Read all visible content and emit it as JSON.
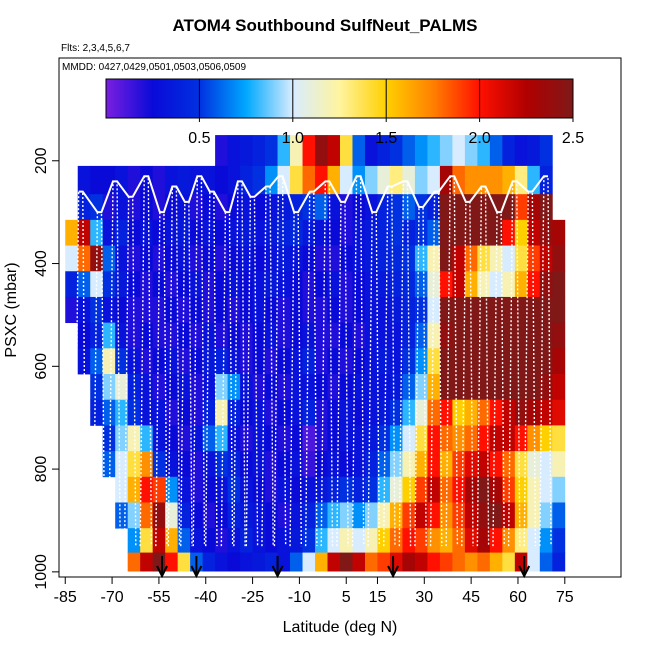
{
  "chart_data": {
    "type": "heatmap",
    "title": "ATOM4 Southbound SulfNeut_PALMS",
    "flights_note": "Flts: 2,3,4,5,6,7",
    "dates_note": "MMDD: 0427,0429,0501,0503,0506,0509",
    "xlabel": "Latitude (deg N)",
    "ylabel": "PSXC (mbar)",
    "xlim": [
      -87,
      93
    ],
    "ylim": [
      1010,
      0
    ],
    "x_ticks": [
      -85,
      -70,
      -55,
      -40,
      -25,
      -10,
      5,
      15,
      30,
      45,
      60,
      75
    ],
    "y_ticks": [
      200,
      400,
      600,
      800,
      1000
    ],
    "colorbar": {
      "range": [
        0,
        2.5
      ],
      "ticks": [
        0.5,
        1.0,
        1.5,
        2.0,
        2.5
      ],
      "tick_labels": [
        "0.5",
        "1.0",
        "1.5",
        "2.0",
        "2.5"
      ],
      "colors": [
        "#7a1fe0",
        "#0a0ad8",
        "#0030e0",
        "#00a8ff",
        "#d8ecff",
        "#fff4a0",
        "#ffd000",
        "#ff8000",
        "#ff1000",
        "#b00000",
        "#801818"
      ]
    },
    "pressure_levels": [
      180,
      240,
      290,
      340,
      390,
      440,
      490,
      540,
      590,
      640,
      690,
      740,
      790,
      840,
      890,
      940,
      985
    ],
    "latitude_start": -83,
    "latitude_step": 4,
    "grid_values": [
      [
        null,
        null,
        null,
        null,
        null,
        null,
        null,
        null,
        null,
        null,
        null,
        null,
        0.2,
        0.3,
        0.35,
        0.4,
        0.5,
        0.8,
        1.2,
        2.0,
        2.4,
        2.2,
        1.4,
        0.6,
        0.3,
        0.4,
        0.5,
        0.6,
        0.7,
        0.8,
        0.9,
        1.0,
        0.9,
        0.8,
        0.6,
        0.4,
        0.3,
        0.35,
        0.5,
        null
      ],
      [
        null,
        0.3,
        0.25,
        0.25,
        0.3,
        0.2,
        0.25,
        0.2,
        0.3,
        0.35,
        0.3,
        0.3,
        0.25,
        0.3,
        0.4,
        0.5,
        0.7,
        1.0,
        1.4,
        1.8,
        2.0,
        1.6,
        1.0,
        0.7,
        0.9,
        1.1,
        1.3,
        1.1,
        0.9,
        1.0,
        2.3,
        1.8,
        1.7,
        1.7,
        1.7,
        1.6,
        1.3,
        0.8,
        0.4,
        null
      ],
      [
        null,
        0.4,
        0.5,
        0.2,
        0.3,
        0.2,
        0.25,
        0.2,
        0.25,
        0.3,
        0.2,
        0.25,
        0.2,
        0.25,
        0.3,
        0.25,
        0.3,
        0.35,
        0.4,
        0.5,
        0.6,
        0.3,
        0.2,
        0.25,
        0.3,
        0.4,
        0.5,
        0.6,
        0.5,
        0.4,
        2.7,
        2.7,
        2.7,
        2.7,
        2.7,
        2.5,
        1.9,
        2.3,
        2.5,
        null
      ],
      [
        1.6,
        2.2,
        0.8,
        0.3,
        0.4,
        0.25,
        0.3,
        0.25,
        0.3,
        0.35,
        0.25,
        0.3,
        0.25,
        0.3,
        0.35,
        0.3,
        0.35,
        0.4,
        0.45,
        0.35,
        0.3,
        0.25,
        0.2,
        0.3,
        0.35,
        0.4,
        0.5,
        0.4,
        0.5,
        0.6,
        2.6,
        2.7,
        2.7,
        2.6,
        2.5,
        2.0,
        1.5,
        2.2,
        2.4,
        2.3
      ],
      [
        1.0,
        1.8,
        2.4,
        0.6,
        0.3,
        0.2,
        0.25,
        0.2,
        0.25,
        0.3,
        0.2,
        0.25,
        0.2,
        0.25,
        0.3,
        0.25,
        0.3,
        0.35,
        0.3,
        0.25,
        0.2,
        0.2,
        0.25,
        0.3,
        0.35,
        0.4,
        0.45,
        0.5,
        0.8,
        1.2,
        2.5,
        2.2,
        1.8,
        1.4,
        1.2,
        1.0,
        1.4,
        1.9,
        2.2,
        2.4
      ],
      [
        0.4,
        0.6,
        1.0,
        0.5,
        0.35,
        0.25,
        0.2,
        0.25,
        0.2,
        0.25,
        0.3,
        0.2,
        0.25,
        0.3,
        0.25,
        0.3,
        0.35,
        0.3,
        0.25,
        0.2,
        0.25,
        0.3,
        0.2,
        0.25,
        0.3,
        0.35,
        0.4,
        0.45,
        0.6,
        1.1,
        2.0,
        2.2,
        1.6,
        1.2,
        1.0,
        1.2,
        1.6,
        2.0,
        2.4,
        2.5
      ],
      [
        0.2,
        0.3,
        0.5,
        0.3,
        0.25,
        0.2,
        0.2,
        0.2,
        0.25,
        0.2,
        0.25,
        0.2,
        0.25,
        0.2,
        0.25,
        0.3,
        0.25,
        0.2,
        0.25,
        0.2,
        0.2,
        0.25,
        0.2,
        0.25,
        0.3,
        0.3,
        0.35,
        0.4,
        0.5,
        1.0,
        2.5,
        2.6,
        2.7,
        2.7,
        2.6,
        2.6,
        2.6,
        2.6,
        2.7,
        2.7
      ],
      [
        null,
        0.25,
        0.4,
        0.8,
        0.3,
        0.2,
        0.25,
        0.2,
        0.2,
        0.25,
        0.2,
        0.3,
        0.2,
        0.25,
        0.2,
        0.25,
        0.3,
        0.2,
        0.25,
        0.3,
        0.2,
        0.2,
        0.25,
        0.2,
        0.3,
        0.3,
        0.3,
        0.4,
        0.6,
        1.2,
        2.4,
        2.7,
        2.7,
        2.7,
        2.6,
        2.6,
        2.6,
        2.7,
        2.6,
        2.4
      ],
      [
        null,
        0.3,
        0.6,
        1.2,
        0.5,
        0.3,
        0.2,
        0.25,
        0.3,
        0.2,
        0.25,
        0.35,
        0.4,
        0.3,
        0.2,
        0.25,
        0.2,
        0.25,
        0.3,
        0.4,
        0.2,
        0.25,
        0.2,
        0.25,
        0.3,
        0.35,
        0.3,
        0.5,
        0.7,
        1.4,
        2.5,
        2.7,
        2.7,
        2.7,
        2.6,
        2.6,
        2.6,
        2.6,
        2.5,
        2.3
      ],
      [
        null,
        null,
        0.5,
        0.9,
        1.1,
        0.4,
        0.3,
        0.2,
        0.25,
        0.3,
        0.2,
        0.3,
        0.9,
        0.7,
        0.3,
        0.2,
        0.25,
        0.2,
        0.3,
        0.3,
        0.25,
        0.2,
        0.25,
        0.3,
        0.3,
        0.3,
        0.35,
        0.6,
        0.9,
        1.6,
        2.6,
        2.7,
        2.7,
        2.7,
        2.7,
        2.6,
        2.7,
        2.6,
        2.4,
        2.2
      ],
      [
        null,
        null,
        0.4,
        0.6,
        0.8,
        0.5,
        0.3,
        0.3,
        0.2,
        0.25,
        0.2,
        0.4,
        1.2,
        0.4,
        0.25,
        0.3,
        0.2,
        0.25,
        0.3,
        0.4,
        0.2,
        0.25,
        0.3,
        0.25,
        0.3,
        0.35,
        0.5,
        0.8,
        1.1,
        1.8,
        2.0,
        1.5,
        1.6,
        1.8,
        2.0,
        2.2,
        2.4,
        2.3,
        2.2,
        2.1
      ],
      [
        null,
        null,
        null,
        0.5,
        0.9,
        1.2,
        0.8,
        0.3,
        0.25,
        0.2,
        0.3,
        0.6,
        0.8,
        0.3,
        0.2,
        0.3,
        0.25,
        0.2,
        0.25,
        0.1,
        0.2,
        0.25,
        0.3,
        0.3,
        0.35,
        0.5,
        0.7,
        1.0,
        1.4,
        2.0,
        1.8,
        1.7,
        1.8,
        2.0,
        2.2,
        2.2,
        2.0,
        1.7,
        1.5,
        1.4
      ],
      [
        null,
        null,
        null,
        0.6,
        1.0,
        1.4,
        1.7,
        0.5,
        0.3,
        0.25,
        0.2,
        0.3,
        0.5,
        0.4,
        0.25,
        0.3,
        0.2,
        0.25,
        0.3,
        0.15,
        0.25,
        0.3,
        0.25,
        0.3,
        0.4,
        0.6,
        0.9,
        1.2,
        1.6,
        2.0,
        1.6,
        1.9,
        2.1,
        2.2,
        2.0,
        1.8,
        1.4,
        1.1,
        1.0,
        1.2
      ],
      [
        null,
        null,
        null,
        null,
        1.0,
        1.6,
        2.0,
        1.9,
        0.7,
        0.3,
        0.2,
        0.25,
        0.3,
        0.5,
        0.3,
        0.25,
        0.2,
        0.3,
        0.25,
        0.3,
        0.35,
        0.4,
        0.5,
        0.4,
        0.5,
        0.8,
        1.1,
        1.5,
        1.9,
        2.2,
        1.8,
        2.0,
        2.3,
        2.5,
        2.3,
        1.9,
        1.5,
        1.2,
        1.0,
        0.9
      ],
      [
        null,
        null,
        null,
        null,
        0.6,
        0.9,
        1.8,
        2.4,
        1.1,
        0.4,
        0.25,
        0.2,
        0.25,
        0.4,
        0.35,
        0.3,
        0.25,
        0.2,
        0.3,
        0.4,
        0.6,
        0.8,
        0.9,
        0.7,
        0.9,
        1.2,
        1.6,
        1.9,
        2.2,
        2.0,
        1.7,
        1.9,
        2.2,
        2.4,
        2.6,
        2.2,
        1.6,
        1.2,
        0.9,
        0.6
      ],
      [
        null,
        null,
        null,
        null,
        null,
        0.7,
        1.4,
        2.2,
        1.6,
        0.6,
        0.3,
        0.25,
        0.2,
        0.3,
        0.4,
        0.3,
        0.25,
        0.3,
        0.35,
        0.5,
        0.8,
        1.0,
        1.2,
        1.0,
        1.2,
        1.5,
        1.8,
        2.0,
        1.9,
        1.7,
        1.6,
        1.8,
        2.1,
        2.3,
        2.0,
        1.7,
        1.3,
        1.0,
        0.7,
        0.5
      ],
      [
        null,
        null,
        null,
        null,
        null,
        1.8,
        2.2,
        2.6,
        2.0,
        1.4,
        0.6,
        0.4,
        0.3,
        0.25,
        0.3,
        0.35,
        0.4,
        0.3,
        0.6,
        1.0,
        1.6,
        2.2,
        2.6,
        2.2,
        1.8,
        1.9,
        2.1,
        2.3,
        2.2,
        2.0,
        1.9,
        1.8,
        1.7,
        1.8,
        1.6,
        1.4,
        2.2,
        1.0,
        0.6,
        0.4
      ]
    ],
    "flight_track_latitudes": [
      -82,
      -76,
      -71,
      -66,
      -61,
      -56,
      -52,
      -48,
      -44,
      -40,
      -35,
      -31,
      -27,
      -22,
      -18,
      -13,
      -8,
      -3,
      2,
      7,
      12,
      17,
      22,
      27,
      32,
      37,
      42,
      47,
      52,
      57,
      62,
      67
    ],
    "flight_track_top_pressures": [
      260,
      300,
      240,
      270,
      230,
      300,
      250,
      280,
      230,
      260,
      300,
      240,
      270,
      250,
      230,
      300,
      260,
      240,
      280,
      230,
      300,
      250,
      240,
      290,
      260,
      230,
      280,
      250,
      300,
      240,
      260,
      230
    ],
    "arrow_latitudes": [
      -54,
      -43,
      -17,
      20,
      62
    ]
  }
}
